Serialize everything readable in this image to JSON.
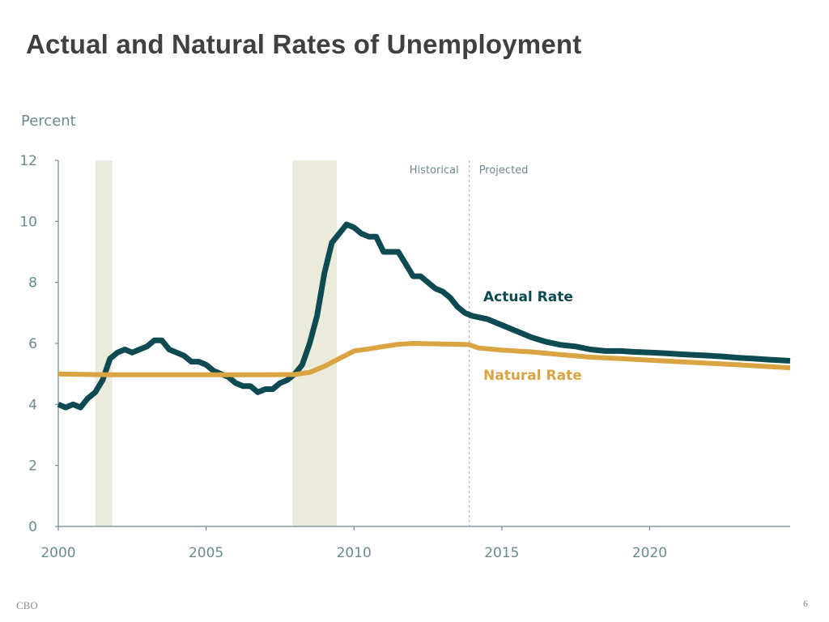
{
  "slide": {
    "title": "Actual and Natural Rates of Unemployment",
    "source": "CBO",
    "page_number": "6"
  },
  "colors": {
    "actual": "#0e4a52",
    "natural": "#d9a441",
    "recession": "#ebebdb",
    "axis": "#6b8a8f",
    "divider": "#9aaeb0"
  },
  "chart_data": {
    "type": "line",
    "ylabel": "Percent",
    "xlim": [
      2000,
      2024.75
    ],
    "ylim": [
      0,
      12
    ],
    "x_ticks": [
      2000,
      2005,
      2010,
      2015,
      2020
    ],
    "y_ticks": [
      0,
      2,
      4,
      6,
      8,
      10,
      12
    ],
    "recessions": [
      [
        2001.25,
        2001.83
      ],
      [
        2007.92,
        2009.42
      ]
    ],
    "divider": {
      "x": 2013.9,
      "left_label": "Historical",
      "right_label": "Projected"
    },
    "series": [
      {
        "name": "Actual Rate",
        "key": "actual",
        "points": [
          [
            2000.0,
            4.0
          ],
          [
            2000.25,
            3.9
          ],
          [
            2000.5,
            4.0
          ],
          [
            2000.75,
            3.9
          ],
          [
            2001.0,
            4.2
          ],
          [
            2001.25,
            4.4
          ],
          [
            2001.5,
            4.8
          ],
          [
            2001.75,
            5.5
          ],
          [
            2002.0,
            5.7
          ],
          [
            2002.25,
            5.8
          ],
          [
            2002.5,
            5.7
          ],
          [
            2002.75,
            5.8
          ],
          [
            2003.0,
            5.9
          ],
          [
            2003.25,
            6.1
          ],
          [
            2003.5,
            6.1
          ],
          [
            2003.75,
            5.8
          ],
          [
            2004.0,
            5.7
          ],
          [
            2004.25,
            5.6
          ],
          [
            2004.5,
            5.4
          ],
          [
            2004.75,
            5.4
          ],
          [
            2005.0,
            5.3
          ],
          [
            2005.25,
            5.1
          ],
          [
            2005.5,
            5.0
          ],
          [
            2005.75,
            4.9
          ],
          [
            2006.0,
            4.7
          ],
          [
            2006.25,
            4.6
          ],
          [
            2006.5,
            4.6
          ],
          [
            2006.75,
            4.4
          ],
          [
            2007.0,
            4.5
          ],
          [
            2007.25,
            4.5
          ],
          [
            2007.5,
            4.7
          ],
          [
            2007.75,
            4.8
          ],
          [
            2008.0,
            5.0
          ],
          [
            2008.25,
            5.3
          ],
          [
            2008.5,
            6.0
          ],
          [
            2008.75,
            6.9
          ],
          [
            2009.0,
            8.3
          ],
          [
            2009.25,
            9.3
          ],
          [
            2009.5,
            9.6
          ],
          [
            2009.75,
            9.9
          ],
          [
            2010.0,
            9.8
          ],
          [
            2010.25,
            9.6
          ],
          [
            2010.5,
            9.5
          ],
          [
            2010.75,
            9.5
          ],
          [
            2011.0,
            9.0
          ],
          [
            2011.25,
            9.0
          ],
          [
            2011.5,
            9.0
          ],
          [
            2011.75,
            8.6
          ],
          [
            2012.0,
            8.2
          ],
          [
            2012.25,
            8.2
          ],
          [
            2012.5,
            8.0
          ],
          [
            2012.75,
            7.8
          ],
          [
            2013.0,
            7.7
          ],
          [
            2013.25,
            7.5
          ],
          [
            2013.5,
            7.2
          ],
          [
            2013.75,
            7.0
          ],
          [
            2014.0,
            6.9
          ],
          [
            2014.5,
            6.8
          ],
          [
            2015.0,
            6.6
          ],
          [
            2015.5,
            6.4
          ],
          [
            2016.0,
            6.2
          ],
          [
            2016.5,
            6.05
          ],
          [
            2017.0,
            5.95
          ],
          [
            2017.5,
            5.9
          ],
          [
            2018.0,
            5.8
          ],
          [
            2018.5,
            5.75
          ],
          [
            2019.0,
            5.75
          ],
          [
            2019.5,
            5.72
          ],
          [
            2020.0,
            5.7
          ],
          [
            2020.5,
            5.68
          ],
          [
            2021.0,
            5.65
          ],
          [
            2021.5,
            5.62
          ],
          [
            2022.0,
            5.6
          ],
          [
            2022.5,
            5.57
          ],
          [
            2023.0,
            5.53
          ],
          [
            2023.5,
            5.5
          ],
          [
            2024.0,
            5.47
          ],
          [
            2024.75,
            5.43
          ]
        ]
      },
      {
        "name": "Natural Rate",
        "key": "natural",
        "points": [
          [
            2000.0,
            5.0
          ],
          [
            2001.0,
            4.98
          ],
          [
            2002.0,
            4.97
          ],
          [
            2003.0,
            4.97
          ],
          [
            2004.0,
            4.97
          ],
          [
            2005.0,
            4.97
          ],
          [
            2006.0,
            4.97
          ],
          [
            2007.0,
            4.97
          ],
          [
            2008.0,
            4.98
          ],
          [
            2008.5,
            5.05
          ],
          [
            2009.0,
            5.25
          ],
          [
            2009.5,
            5.5
          ],
          [
            2010.0,
            5.75
          ],
          [
            2010.5,
            5.82
          ],
          [
            2011.0,
            5.9
          ],
          [
            2011.5,
            5.97
          ],
          [
            2012.0,
            6.0
          ],
          [
            2012.5,
            5.99
          ],
          [
            2013.0,
            5.98
          ],
          [
            2013.5,
            5.97
          ],
          [
            2013.9,
            5.96
          ],
          [
            2014.2,
            5.85
          ],
          [
            2015.0,
            5.78
          ],
          [
            2016.0,
            5.72
          ],
          [
            2017.0,
            5.63
          ],
          [
            2018.0,
            5.55
          ],
          [
            2019.0,
            5.5
          ],
          [
            2020.0,
            5.45
          ],
          [
            2021.0,
            5.4
          ],
          [
            2022.0,
            5.35
          ],
          [
            2023.0,
            5.3
          ],
          [
            2024.0,
            5.24
          ],
          [
            2024.75,
            5.2
          ]
        ]
      }
    ]
  }
}
